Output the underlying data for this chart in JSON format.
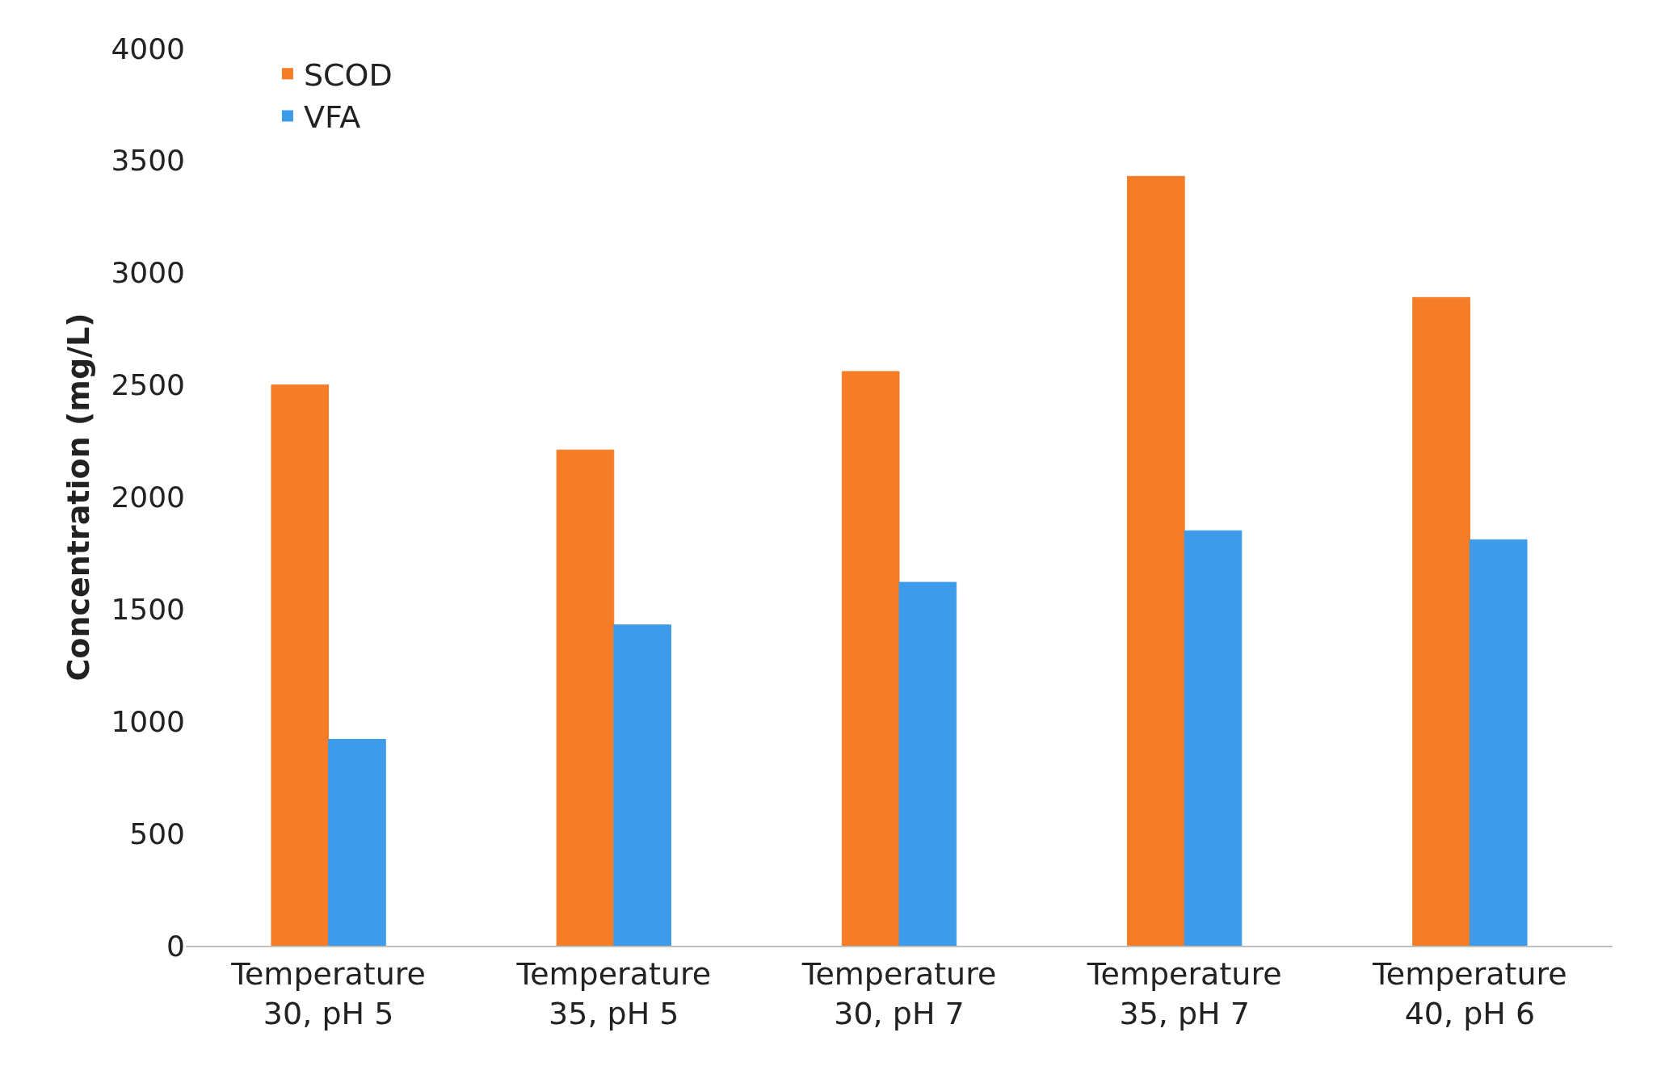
{
  "chart_data": {
    "type": "bar",
    "ylabel": "Concentration (mg/L)",
    "categories": [
      "Temperature 30, pH 5",
      "Temperature 35, pH 5",
      "Temperature 30, pH 7",
      "Temperature 35, pH 7",
      "Temperature 40, pH 6"
    ],
    "series": [
      {
        "name": "SCOD",
        "color": "#f57d27",
        "values": [
          2500,
          2210,
          2560,
          3430,
          2890
        ]
      },
      {
        "name": "VFA",
        "color": "#3d9be9",
        "values": [
          920,
          1430,
          1620,
          1850,
          1810
        ]
      }
    ],
    "ylim": [
      0,
      4000
    ],
    "yticks": [
      0,
      500,
      1000,
      1500,
      2000,
      2500,
      3000,
      3500,
      4000
    ],
    "legend": "top left"
  }
}
